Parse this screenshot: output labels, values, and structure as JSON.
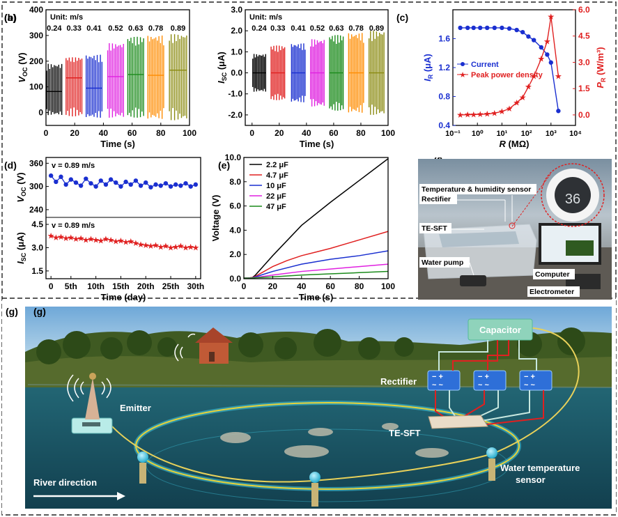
{
  "panel_labels": {
    "a": "(a)",
    "b": "(b)",
    "c": "(c)",
    "d": "(d)",
    "e": "(e)",
    "f": "(f)",
    "g": "(g)"
  },
  "chart_data": [
    {
      "id": "a",
      "type": "line",
      "xlabel": "Time (s)",
      "ylabel_main": "V",
      "ylabel_sub": "OC",
      "ylabel_unit": " (V)",
      "xlim": [
        0,
        100
      ],
      "ylim": [
        -50,
        400
      ],
      "xticks": [
        0,
        20,
        40,
        60,
        80,
        100
      ],
      "yticks": [
        0,
        100,
        200,
        300,
        400
      ],
      "annotation": "Unit: m/s",
      "speed_labels": [
        "0.24",
        "0.33",
        "0.41",
        "0.52",
        "0.63",
        "0.78",
        "0.89"
      ],
      "groups": [
        {
          "x_start": 0.5,
          "x_end": 11,
          "baseline": 82,
          "max": 190,
          "min": -10,
          "color": "#000000"
        },
        {
          "x_start": 14,
          "x_end": 25,
          "baseline": 135,
          "max": 215,
          "min": -15,
          "color": "#e02020"
        },
        {
          "x_start": 28,
          "x_end": 39,
          "baseline": 95,
          "max": 225,
          "min": -20,
          "color": "#1a2fd0"
        },
        {
          "x_start": 43,
          "x_end": 54,
          "baseline": 140,
          "max": 270,
          "min": -20,
          "color": "#e020e0"
        },
        {
          "x_start": 57,
          "x_end": 68,
          "baseline": 148,
          "max": 295,
          "min": -20,
          "color": "#1a8a1a"
        },
        {
          "x_start": 71,
          "x_end": 82,
          "baseline": 145,
          "max": 300,
          "min": -25,
          "color": "#ff8c00"
        },
        {
          "x_start": 86,
          "x_end": 98,
          "baseline": 165,
          "max": 305,
          "min": -30,
          "color": "#8a8a10"
        }
      ]
    },
    {
      "id": "b",
      "type": "line",
      "xlabel": "Time (s)",
      "ylabel_main": "I",
      "ylabel_sub": "SC",
      "ylabel_unit": " (μA)",
      "xlim": [
        -5,
        100
      ],
      "ylim": [
        -2.5,
        3.0
      ],
      "xticks": [
        0,
        20,
        40,
        60,
        80,
        100
      ],
      "yticks": [
        -2.0,
        -1.0,
        0.0,
        1.0,
        2.0,
        3.0
      ],
      "ytick_labels": [
        "-2.0",
        "-1.0",
        "0.0",
        "1.0",
        "2.0",
        "3.0"
      ],
      "annotation": "Unit: m/s",
      "speed_labels": [
        "0.24",
        "0.33",
        "0.41",
        "0.52",
        "0.63",
        "0.78",
        "0.89"
      ],
      "groups": [
        {
          "x_start": 0.5,
          "x_end": 10,
          "baseline": 0,
          "max": 0.9,
          "min": -0.9,
          "color": "#000000"
        },
        {
          "x_start": 14,
          "x_end": 24,
          "baseline": 0,
          "max": 1.3,
          "min": -1.3,
          "color": "#e02020"
        },
        {
          "x_start": 29,
          "x_end": 39,
          "baseline": 0,
          "max": 1.4,
          "min": -1.4,
          "color": "#1a2fd0"
        },
        {
          "x_start": 43,
          "x_end": 53,
          "baseline": 0,
          "max": 1.6,
          "min": -1.6,
          "color": "#e020e0"
        },
        {
          "x_start": 57,
          "x_end": 67,
          "baseline": 0,
          "max": 1.8,
          "min": -1.8,
          "color": "#1a8a1a"
        },
        {
          "x_start": 71,
          "x_end": 82,
          "baseline": 0,
          "max": 1.9,
          "min": -1.9,
          "color": "#ff8c00"
        },
        {
          "x_start": 86,
          "x_end": 97,
          "baseline": 0,
          "max": 2.0,
          "min": -2.0,
          "color": "#8a8a10"
        }
      ]
    },
    {
      "id": "c",
      "type": "line",
      "xlabel": "R (MΩ)",
      "ylabel_left_main": "I",
      "ylabel_left_sub": "R",
      "ylabel_left_unit": " (μA)",
      "ylabel_right_main": "P",
      "ylabel_right_sub": "R",
      "ylabel_right_unit": " (W/m³)",
      "xscale": "log",
      "xlim": [
        0.1,
        10000
      ],
      "ylim_left": [
        0.4,
        2.0
      ],
      "ylim_right": [
        -0.6,
        6.0
      ],
      "xticks": [
        0.1,
        1,
        10,
        100,
        1000,
        10000
      ],
      "xtick_labels": [
        "10⁻¹",
        "10⁰",
        "10¹",
        "10²",
        "10³",
        "10⁴"
      ],
      "yticks_left": [
        0.4,
        0.8,
        1.2,
        1.6
      ],
      "ytick_left_labels": [
        "0.4",
        "0.8",
        "1.2",
        "1.6"
      ],
      "yticks_right": [
        0.0,
        1.5,
        3.0,
        4.5,
        6.0
      ],
      "ytick_right_labels": [
        "0.0",
        "1.5",
        "3.0",
        "4.5",
        "6.0"
      ],
      "legend": [
        "Current",
        "Peak power density"
      ],
      "series": [
        {
          "name": "Current",
          "axis": "left",
          "color": "#1a2fd0",
          "x": [
            0.2,
            0.4,
            0.7,
            1.3,
            2.5,
            5,
            10,
            20,
            40,
            70,
            120,
            200,
            400,
            700,
            1000,
            2000
          ],
          "y": [
            1.75,
            1.75,
            1.75,
            1.75,
            1.75,
            1.75,
            1.75,
            1.74,
            1.72,
            1.69,
            1.63,
            1.58,
            1.48,
            1.38,
            1.27,
            0.6
          ]
        },
        {
          "name": "Peak power density",
          "axis": "right",
          "color": "#e02020",
          "x": [
            0.2,
            0.4,
            0.7,
            1.3,
            2.5,
            5,
            10,
            20,
            40,
            70,
            120,
            200,
            400,
            700,
            1000,
            2000
          ],
          "y": [
            0.0,
            0.01,
            0.02,
            0.03,
            0.05,
            0.1,
            0.2,
            0.35,
            0.7,
            1.0,
            1.6,
            2.2,
            3.2,
            4.2,
            5.6,
            2.2
          ]
        }
      ]
    },
    {
      "id": "d",
      "type": "scatter",
      "xlabel": "Time (day)",
      "xlim": [
        0,
        31
      ],
      "xticks": [
        1,
        5,
        10,
        15,
        20,
        25,
        30
      ],
      "xtick_labels": [
        "0",
        "5th",
        "10th",
        "15th",
        "20th",
        "25th",
        "30th"
      ],
      "annotation": "v = 0.89 m/s",
      "top": {
        "ylabel_main": "V",
        "ylabel_sub": "OC",
        "ylabel_unit": " (V)",
        "ylim": [
          220,
          375
        ],
        "yticks": [
          240,
          300,
          360
        ],
        "color": "#1a2fd0",
        "y": [
          328,
          312,
          325,
          305,
          318,
          310,
          302,
          320,
          308,
          300,
          315,
          305,
          318,
          310,
          300,
          312,
          305,
          315,
          302,
          310,
          298,
          305,
          302,
          308,
          300,
          305,
          302,
          308,
          300,
          305
        ]
      },
      "bottom": {
        "ylabel_main": "I",
        "ylabel_sub": "SC",
        "ylabel_unit": " (μA)",
        "ylim": [
          1.0,
          4.95
        ],
        "yticks": [
          1.5,
          3.0,
          4.5
        ],
        "color": "#e02020",
        "y": [
          3.75,
          3.65,
          3.7,
          3.6,
          3.65,
          3.55,
          3.6,
          3.5,
          3.55,
          3.5,
          3.45,
          3.55,
          3.5,
          3.4,
          3.45,
          3.35,
          3.4,
          3.3,
          3.2,
          3.15,
          3.1,
          3.15,
          3.05,
          3.1,
          3.0,
          3.05,
          3.1,
          3.0,
          3.05,
          3.0
        ]
      }
    },
    {
      "id": "e",
      "type": "line",
      "xlabel": "Time (s)",
      "ylabel": "Voltage (V)",
      "xlim": [
        0,
        100
      ],
      "ylim": [
        0,
        10
      ],
      "xticks": [
        0,
        20,
        40,
        60,
        80,
        100
      ],
      "yticks": [
        0,
        2,
        4,
        6,
        8,
        10
      ],
      "ytick_labels": [
        "0.0",
        "2.0",
        "4.0",
        "6.0",
        "8.0",
        "10.0"
      ],
      "series": [
        {
          "name": "2.2 μF",
          "color": "#000000",
          "x": [
            0,
            3,
            6,
            8,
            20,
            40,
            60,
            80,
            100
          ],
          "y": [
            0.05,
            0.06,
            0.1,
            0.3,
            1.9,
            4.4,
            6.3,
            8.1,
            9.9
          ]
        },
        {
          "name": "4.7 μF",
          "color": "#e02020",
          "x": [
            0,
            3,
            6,
            8,
            20,
            30,
            40,
            50,
            60,
            80,
            100
          ],
          "y": [
            0.05,
            0.06,
            0.1,
            0.2,
            1.0,
            1.5,
            1.9,
            2.2,
            2.5,
            3.2,
            3.9
          ]
        },
        {
          "name": "10 μF",
          "color": "#1a2fd0",
          "x": [
            0,
            3,
            6,
            8,
            20,
            40,
            60,
            80,
            100
          ],
          "y": [
            0.05,
            0.06,
            0.08,
            0.15,
            0.6,
            1.2,
            1.6,
            1.9,
            2.3
          ]
        },
        {
          "name": "22 μF",
          "color": "#e020e0",
          "x": [
            0,
            3,
            6,
            8,
            20,
            40,
            60,
            80,
            100
          ],
          "y": [
            0.05,
            0.06,
            0.07,
            0.1,
            0.3,
            0.6,
            0.8,
            1.0,
            1.2
          ]
        },
        {
          "name": "47 μF",
          "color": "#1a8a1a",
          "x": [
            0,
            3,
            6,
            8,
            20,
            40,
            60,
            80,
            100
          ],
          "y": [
            0.05,
            0.05,
            0.06,
            0.08,
            0.15,
            0.3,
            0.4,
            0.5,
            0.6
          ]
        }
      ]
    }
  ],
  "photo_f": {
    "labels": [
      "Temperature & humidity sensor",
      "Rectifier",
      "TE-SFT",
      "Water pump",
      "Computer",
      "Electrometer"
    ],
    "sensor_display": "36"
  },
  "scene_g": {
    "labels": [
      "Capacitor",
      "Rectifier",
      "Emitter",
      "TE-SFT",
      "Water temperature",
      "sensor",
      "River direction"
    ]
  }
}
